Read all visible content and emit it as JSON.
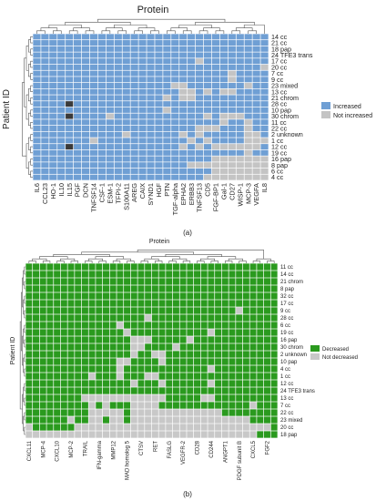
{
  "chart_data": [
    {
      "type": "heatmap",
      "title": "Protein",
      "ylabel": "Patient ID",
      "panel_label": "(a)",
      "columns": [
        "IL6",
        "CCL23",
        "HO-1",
        "IL10",
        "IL15",
        "PGF",
        "DCN",
        "TNFSF14",
        "CSF-1",
        "ESM-1",
        "TFPI-2",
        "S100A11",
        "AREG",
        "CAIX",
        "SYND1",
        "HGF",
        "PTN",
        "TGF-alpha",
        "EPHA2",
        "ERBB3",
        "TNFSF13",
        "CD5",
        "FGF-BP1",
        "Gal-1",
        "CD27",
        "WISP-1",
        "MCP-3",
        "VEGFA",
        "IL8"
      ],
      "rows": [
        "14 cc",
        "21 cc",
        "18 pap",
        "24 TFE3 trans",
        "17 cc",
        "20 cc",
        "7 cc",
        "9 cc",
        "23 mixed",
        "13 cc",
        "21 chrom",
        "28 cc",
        "10 pap",
        "30 chrom",
        "11 cc",
        "22 cc",
        "2 unknown",
        "1 cc",
        "12 cc",
        "19 cc",
        "16 pap",
        "8 pap",
        "6 cc",
        "4 cc"
      ],
      "legend": [
        "Increased",
        "Not increased"
      ],
      "colors": {
        "increased": "#6f9fd4",
        "not_increased": "#c4c4c4",
        "missing": "#3a3a3a",
        "grid": "#ffffff"
      },
      "matrix": [
        "11111111111111111111111111111",
        "11111111111111111111111111111",
        "11111111111111111111111111111",
        "11111111111111111111111111111",
        "11111111111111111111011111111",
        "11111111111111111111111111110",
        "11111111111111111111111101111",
        "11111111111111111111111101111",
        "11111111111111111001111111011",
        "11111111111111111100101001111",
        "11111111111111110100111111111",
        "11112111111111111111111111111",
        "11111111111111110111111111111",
        "11112111101111111111101000111",
        "11111111111111111111111011011",
        "11111111111111111111000111011",
        "11111111111011111101011111001",
        "11111110111111111110101111000",
        "11112111111111111101010000001",
        "11111111111111111111111111011",
        "11111111111111111111110000000",
        "11111111111111111110000000000",
        "11111111111111111111110000000",
        "11111111111111111111100000000"
      ]
    },
    {
      "type": "heatmap",
      "title": "Protein",
      "ylabel": "Patient ID",
      "panel_label": "(b)",
      "columns": [
        "CXCL11",
        "MCP-4",
        "CXCL10",
        "MCP-2",
        "TRAIL",
        "IFN-gamma",
        "MMP12",
        "MAD homolog 5",
        "CTSV",
        "RET",
        "FASLG",
        "VEGFR-2",
        "CD28",
        "CD244",
        "ANGPT1",
        "PDGF subunit B",
        "CXCL5",
        "FGF2"
      ],
      "column_labels": [
        "CXCL11",
        "",
        "MCP-4",
        "",
        "CXCL10",
        "",
        "MCP-2",
        "",
        "TRAIL",
        "",
        "IFN-gamma",
        "",
        "MMP12",
        "",
        "MAD homolog 5",
        "",
        "CTSV",
        "",
        "RET",
        "",
        "FASLG",
        "",
        "VEGFR-2",
        "",
        "CD28",
        "",
        "CD244",
        "",
        "ANGPT1",
        "",
        "PDGF subunit B",
        "",
        "CXCL5",
        "",
        "FGF2",
        ""
      ],
      "rows": [
        "11 cc",
        "14 cc",
        "21 chrom",
        "8 pap",
        "32 cc",
        "17 cc",
        "9 cc",
        "28 cc",
        "6 cc",
        "19 cc",
        "16 pap",
        "30 chrom",
        "2 unknown",
        "10 pap",
        "4 cc",
        "1 cc",
        "12 cc",
        "24 TFE3 trans",
        "13 cc",
        "7 cc",
        "22 cc",
        "23 mixed",
        "20 cc",
        "18 pap"
      ],
      "legend": [
        "Decreased",
        "Not decreased"
      ],
      "colors": {
        "decreased": "#2a9a1e",
        "not_decreased": "#c8c8c8",
        "grid": "#ffffff"
      },
      "matrix": [
        "111111111111111111111111111111111111",
        "111111111111111111111111111111111111",
        "111111111111111111111111111111111111",
        "111111111111111111111111111111111111",
        "111111111111111111111111111111111111",
        "111111111111111111111111111111111111",
        "111111111111111111111111111111011111",
        "111111111111111110111111111111111111",
        "111111111111101111111111111111111111",
        "111111111111110111111111110111111111",
        "111111111111111000111110111111111111",
        "111111111111111001111011111111111111",
        "111111111111111011001111111111111111",
        "111111111111100111101111111111111111",
        "111111111111101111111111110111111111",
        "111111111011101110011111111111111111",
        "111111111111111011101111110111111111",
        "111111111111111111111111111111111111",
        "111111110000000000001111100111111111",
        "111111111010111000011111111111110111",
        "111111111000001000000000000011111111",
        "111111011001001000000000000000001111",
        "011111100000000000000000000000000001",
        "000000000000000000000000000000000111"
      ]
    }
  ]
}
